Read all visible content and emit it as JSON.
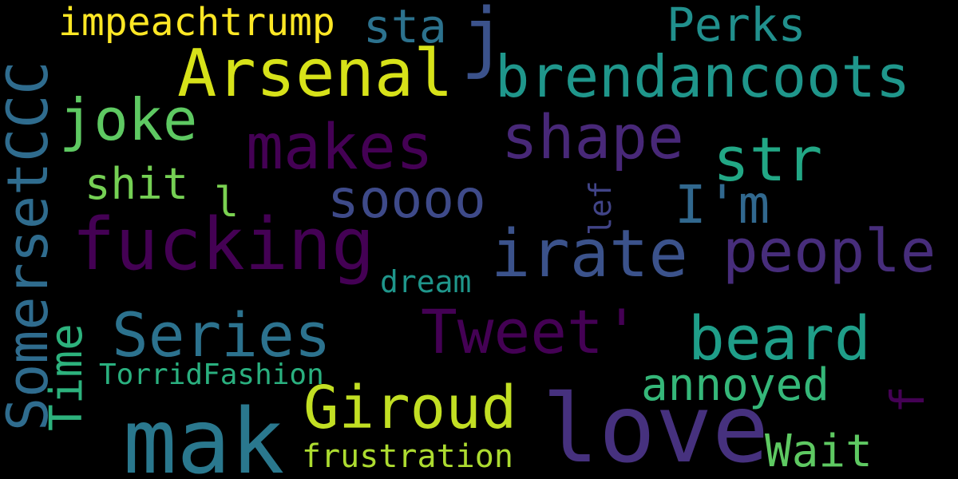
{
  "word_cloud": {
    "background": "#000000",
    "words": [
      {
        "text": "love",
        "color": "#46317e",
        "orientation": "horizontal"
      },
      {
        "text": "mak",
        "color": "#2a788e",
        "orientation": "horizontal"
      },
      {
        "text": "SomersetCCC",
        "color": "#2f6c8e",
        "orientation": "vertical"
      },
      {
        "text": "fucking",
        "color": "#440154",
        "orientation": "horizontal"
      },
      {
        "text": "Arsenal",
        "color": "#d7e219",
        "orientation": "horizontal"
      },
      {
        "text": "brendancoots",
        "color": "#1f968b",
        "orientation": "horizontal"
      },
      {
        "text": "irate",
        "color": "#3b528b",
        "orientation": "horizontal"
      },
      {
        "text": "makes",
        "color": "#440154",
        "orientation": "horizontal"
      },
      {
        "text": "shape",
        "color": "#482878",
        "orientation": "horizontal"
      },
      {
        "text": "str",
        "color": "#22a785",
        "orientation": "horizontal"
      },
      {
        "text": "Tweet'",
        "color": "#440154",
        "orientation": "horizontal"
      },
      {
        "text": "Series",
        "color": "#2c728e",
        "orientation": "horizontal"
      },
      {
        "text": "beard",
        "color": "#1f9e89",
        "orientation": "horizontal"
      },
      {
        "text": "Giroud",
        "color": "#c2df23",
        "orientation": "horizontal"
      },
      {
        "text": "people",
        "color": "#472d7b",
        "orientation": "horizontal"
      },
      {
        "text": "joke",
        "color": "#5ec962",
        "orientation": "horizontal"
      },
      {
        "text": "soooo",
        "color": "#3e4a89",
        "orientation": "horizontal"
      },
      {
        "text": "I'm",
        "color": "#31688e",
        "orientation": "horizontal"
      },
      {
        "text": "j",
        "color": "#3b528b",
        "orientation": "horizontal"
      },
      {
        "text": "sta",
        "color": "#2c728e",
        "orientation": "horizontal"
      },
      {
        "text": "Perks",
        "color": "#21908d",
        "orientation": "horizontal"
      },
      {
        "text": "annoyed",
        "color": "#35b779",
        "orientation": "horizontal"
      },
      {
        "text": "Wait",
        "color": "#5ec962",
        "orientation": "horizontal"
      },
      {
        "text": "shit",
        "color": "#75d054",
        "orientation": "horizontal"
      },
      {
        "text": "impeachtrump",
        "color": "#fde725",
        "orientation": "horizontal"
      },
      {
        "text": "frustration",
        "color": "#addc30",
        "orientation": "horizontal"
      },
      {
        "text": "TorridFashion",
        "color": "#2ab07f",
        "orientation": "horizontal"
      },
      {
        "text": "dream",
        "color": "#1f968b",
        "orientation": "horizontal"
      },
      {
        "text": "Time",
        "color": "#2db27d",
        "orientation": "vertical"
      },
      {
        "text": "f",
        "color": "#440154",
        "orientation": "vertical"
      },
      {
        "text": "lef",
        "color": "#414487",
        "orientation": "vertical"
      },
      {
        "text": "l",
        "color": "#7ad151",
        "orientation": "horizontal"
      }
    ]
  }
}
